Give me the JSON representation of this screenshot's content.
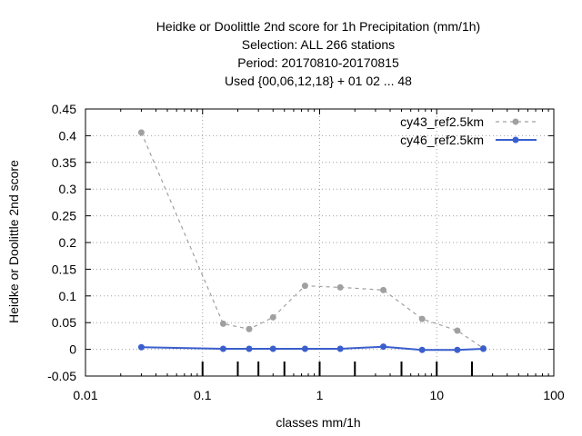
{
  "chart_data": {
    "type": "line",
    "title_lines": [
      "Heidke or Doolittle 2nd score  for 1h Precipitation (mm/1h)",
      "Selection: ALL     266 stations",
      "Period: 20170810-20170815",
      "Used {00,06,12,18} + 01 02 ... 48"
    ],
    "xlabel": "classes mm/1h",
    "ylabel": "Heidke or Doolittle 2nd score",
    "xscale": "log",
    "xlim": [
      0.01,
      100
    ],
    "ylim": [
      -0.05,
      0.45
    ],
    "grid": true,
    "legend_position": "top-right",
    "x_ticks": [
      {
        "value": 0.01,
        "label": "0.01"
      },
      {
        "value": 0.1,
        "label": "0.1"
      },
      {
        "value": 1,
        "label": "1"
      },
      {
        "value": 10,
        "label": "10"
      },
      {
        "value": 100,
        "label": "100"
      }
    ],
    "y_ticks": [
      {
        "value": 0.45,
        "label": "0.45"
      },
      {
        "value": 0.4,
        "label": "0.4"
      },
      {
        "value": 0.35,
        "label": "0.35"
      },
      {
        "value": 0.3,
        "label": "0.3"
      },
      {
        "value": 0.25,
        "label": "0.25"
      },
      {
        "value": 0.2,
        "label": "0.2"
      },
      {
        "value": 0.15,
        "label": "0.15"
      },
      {
        "value": 0.1,
        "label": "0.1"
      },
      {
        "value": 0.05,
        "label": "0.05"
      },
      {
        "value": 0,
        "label": "0"
      },
      {
        "value": -0.05,
        "label": "-0.05"
      }
    ],
    "class_thresholds": [
      0.1,
      0.2,
      0.3,
      0.5,
      1,
      2,
      5,
      10,
      20
    ],
    "series": [
      {
        "name": "cy43_ref2.5km",
        "color": "#a0a0a0",
        "dash": true,
        "x": [
          0.03,
          0.15,
          0.25,
          0.4,
          0.75,
          1.5,
          3.5,
          7.5,
          15,
          25
        ],
        "y": [
          0.406,
          0.048,
          0.038,
          0.06,
          0.119,
          0.116,
          0.111,
          0.057,
          0.035,
          0.002
        ]
      },
      {
        "name": "cy46_ref2.5km",
        "color": "#3a5fcd",
        "dash": false,
        "x": [
          0.03,
          0.15,
          0.25,
          0.4,
          0.75,
          1.5,
          3.5,
          7.5,
          15,
          25
        ],
        "y": [
          0.004,
          0.001,
          0.001,
          0.001,
          0.001,
          0.001,
          0.005,
          -0.001,
          -0.001,
          0.001
        ]
      }
    ]
  }
}
